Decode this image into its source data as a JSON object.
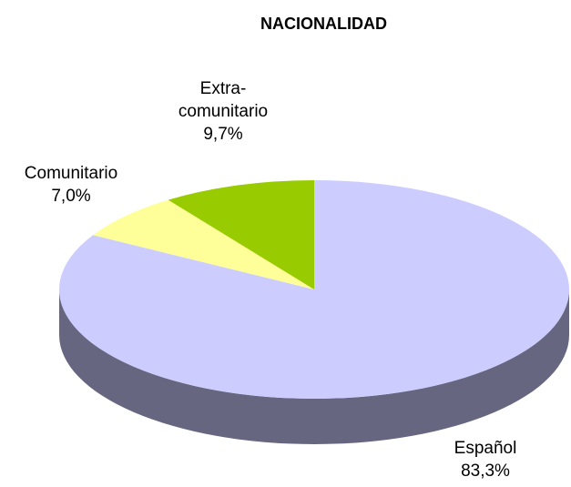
{
  "chart_data": {
    "type": "pie",
    "title": "NACIONALIDAD",
    "categories": [
      "Español",
      "Comunitario",
      "Extra-comunitario"
    ],
    "values": [
      83.3,
      7.0,
      9.7
    ],
    "value_labels": [
      "83,3%",
      "7,0%",
      "9,7%"
    ],
    "colors": [
      "#ccccff",
      "#ffff99",
      "#99cc00"
    ]
  }
}
